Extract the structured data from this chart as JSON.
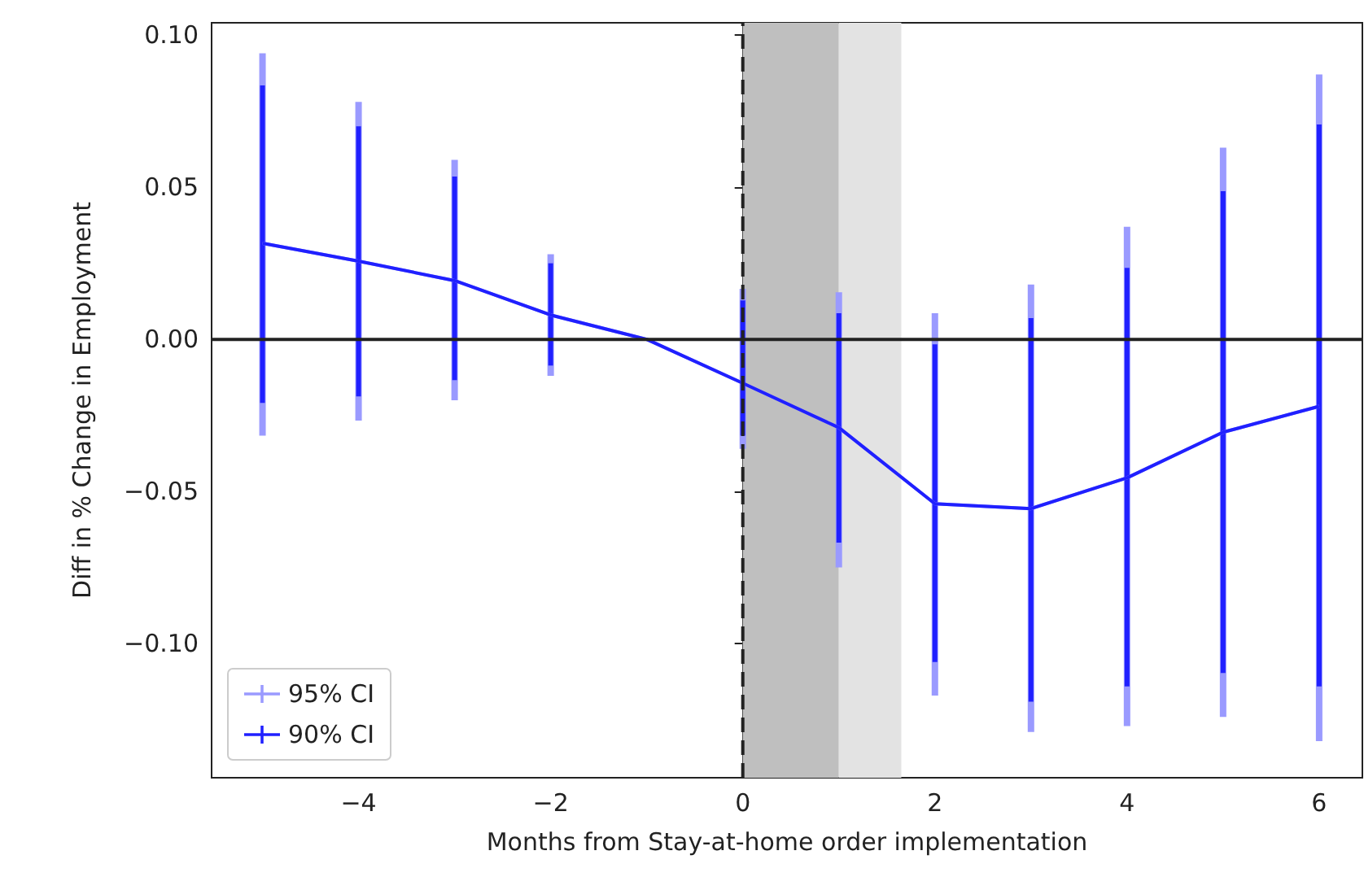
{
  "chart_data": {
    "type": "line",
    "xlabel": "Months from Stay-at-home order implementation",
    "ylabel": "Diff in % Change in Employment",
    "x": [
      -5,
      -4,
      -3,
      -2,
      -1,
      0,
      1,
      2,
      3,
      4,
      5,
      6
    ],
    "series": [
      {
        "name": "95% CI",
        "color": "#9a9aff",
        "values": [
          0.0316,
          0.0257,
          0.0193,
          0.008,
          0.0,
          -0.0144,
          -0.029,
          -0.054,
          -0.0556,
          -0.0455,
          -0.0305,
          -0.022
        ],
        "errors": [
          [
            -0.0316,
            0.094
          ],
          [
            -0.0267,
            0.078
          ],
          [
            -0.02,
            0.059
          ],
          [
            -0.012,
            0.028
          ],
          null,
          [
            -0.036,
            0.0166
          ],
          [
            -0.0749,
            0.0155
          ],
          [
            -0.117,
            0.0086
          ],
          [
            -0.129,
            0.018
          ],
          [
            -0.127,
            0.037
          ],
          [
            -0.124,
            0.063
          ],
          [
            -0.132,
            0.087
          ]
        ]
      },
      {
        "name": "90% CI",
        "color": "#2020ff",
        "values": [
          0.0316,
          0.0257,
          0.0193,
          0.008,
          0.0,
          -0.0144,
          -0.029,
          -0.054,
          -0.0556,
          -0.0455,
          -0.0305,
          -0.022
        ],
        "errors": [
          [
            -0.0209,
            0.0834
          ],
          [
            -0.0187,
            0.07
          ],
          [
            -0.0134,
            0.0535
          ],
          [
            -0.0086,
            0.025
          ],
          null,
          [
            -0.0316,
            0.0128
          ],
          [
            -0.0668,
            0.0086
          ],
          [
            -0.106,
            -0.0016
          ],
          [
            -0.119,
            0.007
          ],
          [
            -0.114,
            0.0235
          ],
          [
            -0.1096,
            0.0487
          ],
          [
            -0.114,
            0.0706
          ]
        ]
      }
    ],
    "xlim": [
      -5.53,
      6.45
    ],
    "ylim": [
      -0.144,
      0.104
    ],
    "xticks": [
      {
        "value": -4,
        "label": "−4"
      },
      {
        "value": -2,
        "label": "−2"
      },
      0,
      2,
      4,
      6
    ],
    "yticks": [
      {
        "value": -0.1,
        "label": "−0.10"
      },
      {
        "value": -0.05,
        "label": "−0.05"
      },
      {
        "value": 0,
        "label": "0.00"
      },
      {
        "value": 0.05,
        "label": "0.05"
      },
      {
        "value": 0.1,
        "label": "0.10"
      }
    ],
    "ref_lines": [
      {
        "axis": "y",
        "value": 0,
        "color": "#222222",
        "line_style": "solid"
      },
      {
        "axis": "x",
        "value": 0,
        "color": "#222222",
        "line_style": "dashed"
      }
    ],
    "bands": [
      {
        "axis": "x",
        "from": 0,
        "to": 1,
        "color": "#bfbfbf"
      },
      {
        "axis": "x",
        "from": 1,
        "to": 1.65,
        "color": "#e3e3e3"
      }
    ],
    "grid": false,
    "legend": "bottom left",
    "marker": "none",
    "line_style": "solid"
  }
}
